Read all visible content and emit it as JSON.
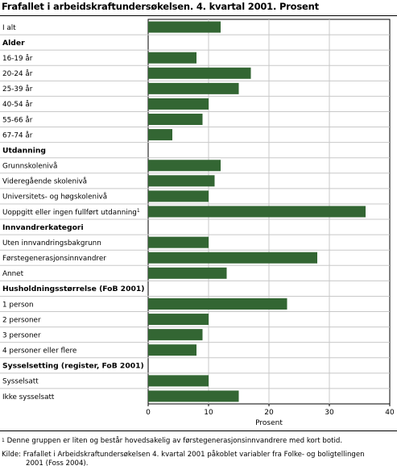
{
  "title": "Frafallet i arbeidskraftundersøkelsen. 4. kvartal 2001. Prosent",
  "chart_data": {
    "type": "bar",
    "orientation": "horizontal",
    "xlabel": "Prosent",
    "xlim": [
      0,
      40
    ],
    "x_ticks": [
      "0",
      "10",
      "20",
      "30",
      "40"
    ],
    "grid": true,
    "bar_color": "#336633",
    "rows": [
      {
        "label": "I alt",
        "value": 12,
        "header": false
      },
      {
        "label": "Alder",
        "value": null,
        "header": true
      },
      {
        "label": "16-19 år",
        "value": 8,
        "header": false
      },
      {
        "label": "20-24 år",
        "value": 17,
        "header": false
      },
      {
        "label": "25-39 år",
        "value": 15,
        "header": false
      },
      {
        "label": "40-54 år",
        "value": 10,
        "header": false
      },
      {
        "label": "55-66 år",
        "value": 9,
        "header": false
      },
      {
        "label": "67-74 år",
        "value": 4,
        "header": false
      },
      {
        "label": "Utdanning",
        "value": null,
        "header": true
      },
      {
        "label": "Grunnskolenivå",
        "value": 12,
        "header": false
      },
      {
        "label": "Videregående skolenivå",
        "value": 11,
        "header": false
      },
      {
        "label": "Universitets- og høgskolenivå",
        "value": 10,
        "header": false
      },
      {
        "label": "Uoppgitt eller ingen fullført utdanning",
        "value": 36,
        "header": false,
        "footnote_mark": "1"
      },
      {
        "label": "Innvandrerkategori",
        "value": null,
        "header": true
      },
      {
        "label": "Uten innvandringsbakgrunn",
        "value": 10,
        "header": false
      },
      {
        "label": "Førstegenerasjonsinnvandrer",
        "value": 28,
        "header": false
      },
      {
        "label": "Annet",
        "value": 13,
        "header": false
      },
      {
        "label": "Husholdningsstørrelse (FoB 2001)",
        "value": null,
        "header": true
      },
      {
        "label": "1 person",
        "value": 23,
        "header": false
      },
      {
        "label": "2 personer",
        "value": 10,
        "header": false
      },
      {
        "label": "3 personer",
        "value": 9,
        "header": false
      },
      {
        "label": "4 personer eller flere",
        "value": 8,
        "header": false
      },
      {
        "label": "Sysselsetting (register, FoB 2001)",
        "value": null,
        "header": true
      },
      {
        "label": "Sysselsatt",
        "value": 10,
        "header": false
      },
      {
        "label": "Ikke sysselsatt",
        "value": 15,
        "header": false
      }
    ]
  },
  "footnote": {
    "mark": "1",
    "text": "Denne gruppen er liten og består hovedsakelig av førstegenerasjonsinnvandrere med kort botid."
  },
  "source": {
    "line1": "Kilde: Frafallet i Arbeidskraftundersøkelsen 4. kvartal 2001 påkoblet variabler fra Folke- og boligtellingen",
    "line2": "2001 (Foss 2004)."
  }
}
